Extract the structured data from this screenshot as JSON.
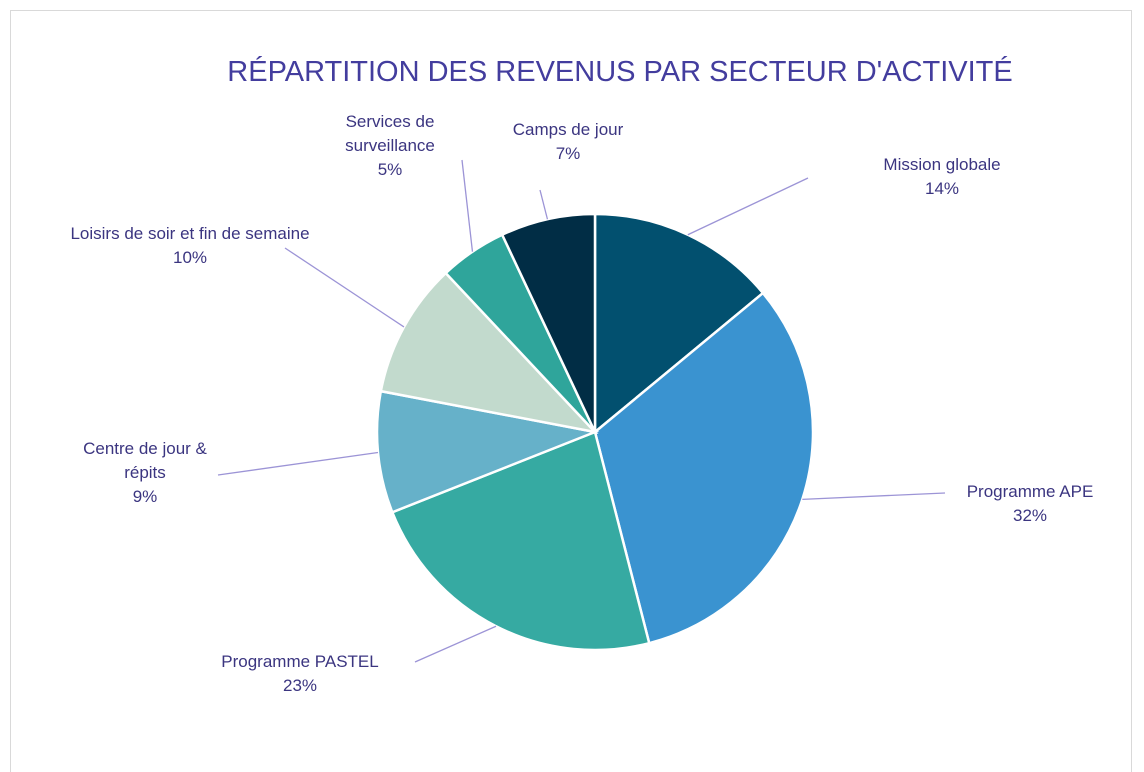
{
  "chart_data": {
    "type": "pie",
    "title": "RÉPARTITION DES REVENUS PAR SECTEUR D'ACTIVITÉ",
    "categories": [
      "Mission globale",
      "Programme APE",
      "Programme PASTEL",
      "Centre de jour & répits",
      "Loisirs de soir et fin de semaine",
      "Services de surveillance",
      "Camps de jour"
    ],
    "values": [
      14,
      32,
      23,
      9,
      10,
      5,
      7
    ],
    "value_labels": [
      "14%",
      "32%",
      "23%",
      "9%",
      "10%",
      "5%",
      "7%"
    ],
    "colors": [
      "#02506f",
      "#3a93d0",
      "#36aaa2",
      "#66b1c9",
      "#c2dacd",
      "#2fa59b",
      "#012d45"
    ]
  }
}
